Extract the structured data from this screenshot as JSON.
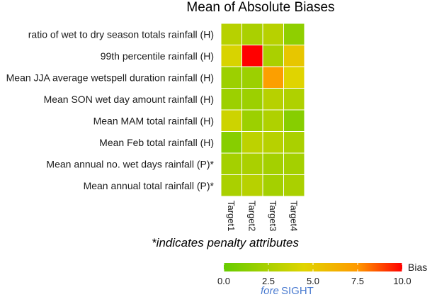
{
  "chart_data": {
    "type": "heatmap",
    "title": "Mean of Absolute Biases",
    "note": "*indicates penalty attributes",
    "rows": [
      "ratio of wet to dry season totals rainfall (H)",
      "99th percentile rainfall (H)",
      "Mean JJA average wetspell duration rainfall (H)",
      "Mean SON wet day amount rainfall (H)",
      "Mean MAM total rainfall (H)",
      "Mean Feb total rainfall (H)",
      "Mean annual no. wet days rainfall (P)*",
      "Mean annual total rainfall (P)*"
    ],
    "columns": [
      "Target1",
      "Target2",
      "Target3",
      "Target4"
    ],
    "values": [
      [
        3.0,
        2.5,
        3.0,
        1.5
      ],
      [
        4.2,
        10.0,
        2.5,
        5.2
      ],
      [
        2.0,
        2.0,
        7.2,
        4.5
      ],
      [
        2.0,
        2.0,
        3.0,
        2.7
      ],
      [
        3.8,
        2.0,
        2.7,
        1.2
      ],
      [
        1.2,
        3.2,
        3.0,
        2.5
      ],
      [
        2.3,
        2.5,
        2.3,
        2.3
      ],
      [
        2.5,
        3.0,
        2.3,
        2.5
      ]
    ],
    "legend": {
      "title": "Bias",
      "min": 0,
      "max": 10,
      "ticks": [
        "0.0",
        "2.5",
        "5.0",
        "7.5",
        "10.0"
      ],
      "colors": {
        "low": "#66cc00",
        "mid": "#e0d400",
        "high_mid": "#ff9900",
        "high": "#ff0000"
      }
    }
  },
  "logo": {
    "fore": "fore",
    "sight": "SIGHT"
  }
}
